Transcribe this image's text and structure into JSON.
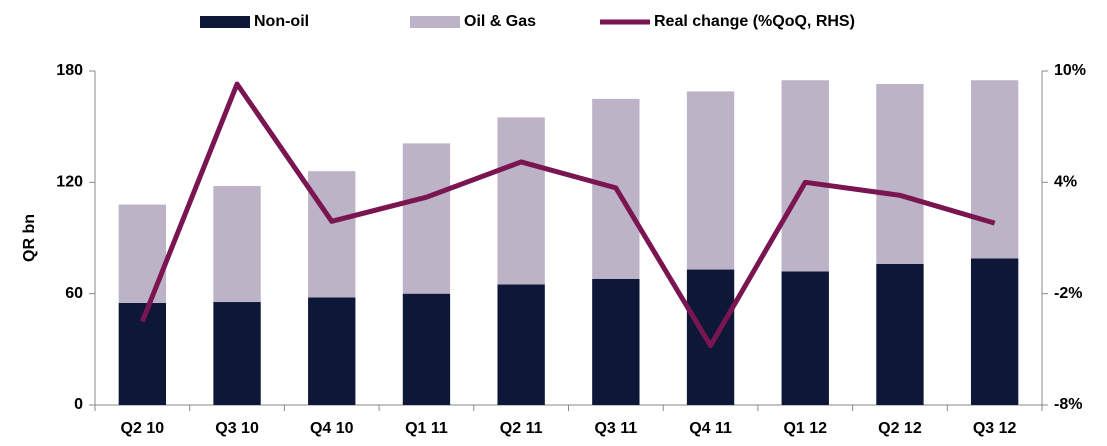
{
  "chart_data": {
    "type": "bar_line",
    "categories": [
      "Q2 10",
      "Q3 10",
      "Q4 10",
      "Q1 11",
      "Q2 11",
      "Q3 11",
      "Q4 11",
      "Q1 12",
      "Q2 12",
      "Q3 12"
    ],
    "series": [
      {
        "name": "Non-oil",
        "color": "#0d1838",
        "values": [
          55,
          55.5,
          58,
          60,
          65,
          68,
          73,
          72,
          76,
          79
        ]
      },
      {
        "name": "Oil & Gas",
        "color": "#bcb3c6",
        "values": [
          53,
          62.5,
          68,
          81,
          90,
          97,
          96,
          103,
          97,
          96
        ]
      },
      {
        "name": "Real change (%QoQ, RHS)",
        "color": "#7a1552",
        "axis": "y2",
        "values": [
          -3.5,
          9.3,
          1.9,
          3.2,
          5.1,
          3.7,
          -4.8,
          4.0,
          3.3,
          1.8
        ]
      }
    ],
    "ylabel": "QR bn",
    "ylim": [
      0,
      180
    ],
    "yticks": [
      0,
      60,
      120,
      180
    ],
    "y2lim": [
      -8,
      10
    ],
    "y2ticks": [
      {
        "value": -8,
        "label": "-8%"
      },
      {
        "value": -2,
        "label": "-2%"
      },
      {
        "value": 4,
        "label": "4%"
      },
      {
        "value": 10,
        "label": "10%"
      }
    ]
  }
}
